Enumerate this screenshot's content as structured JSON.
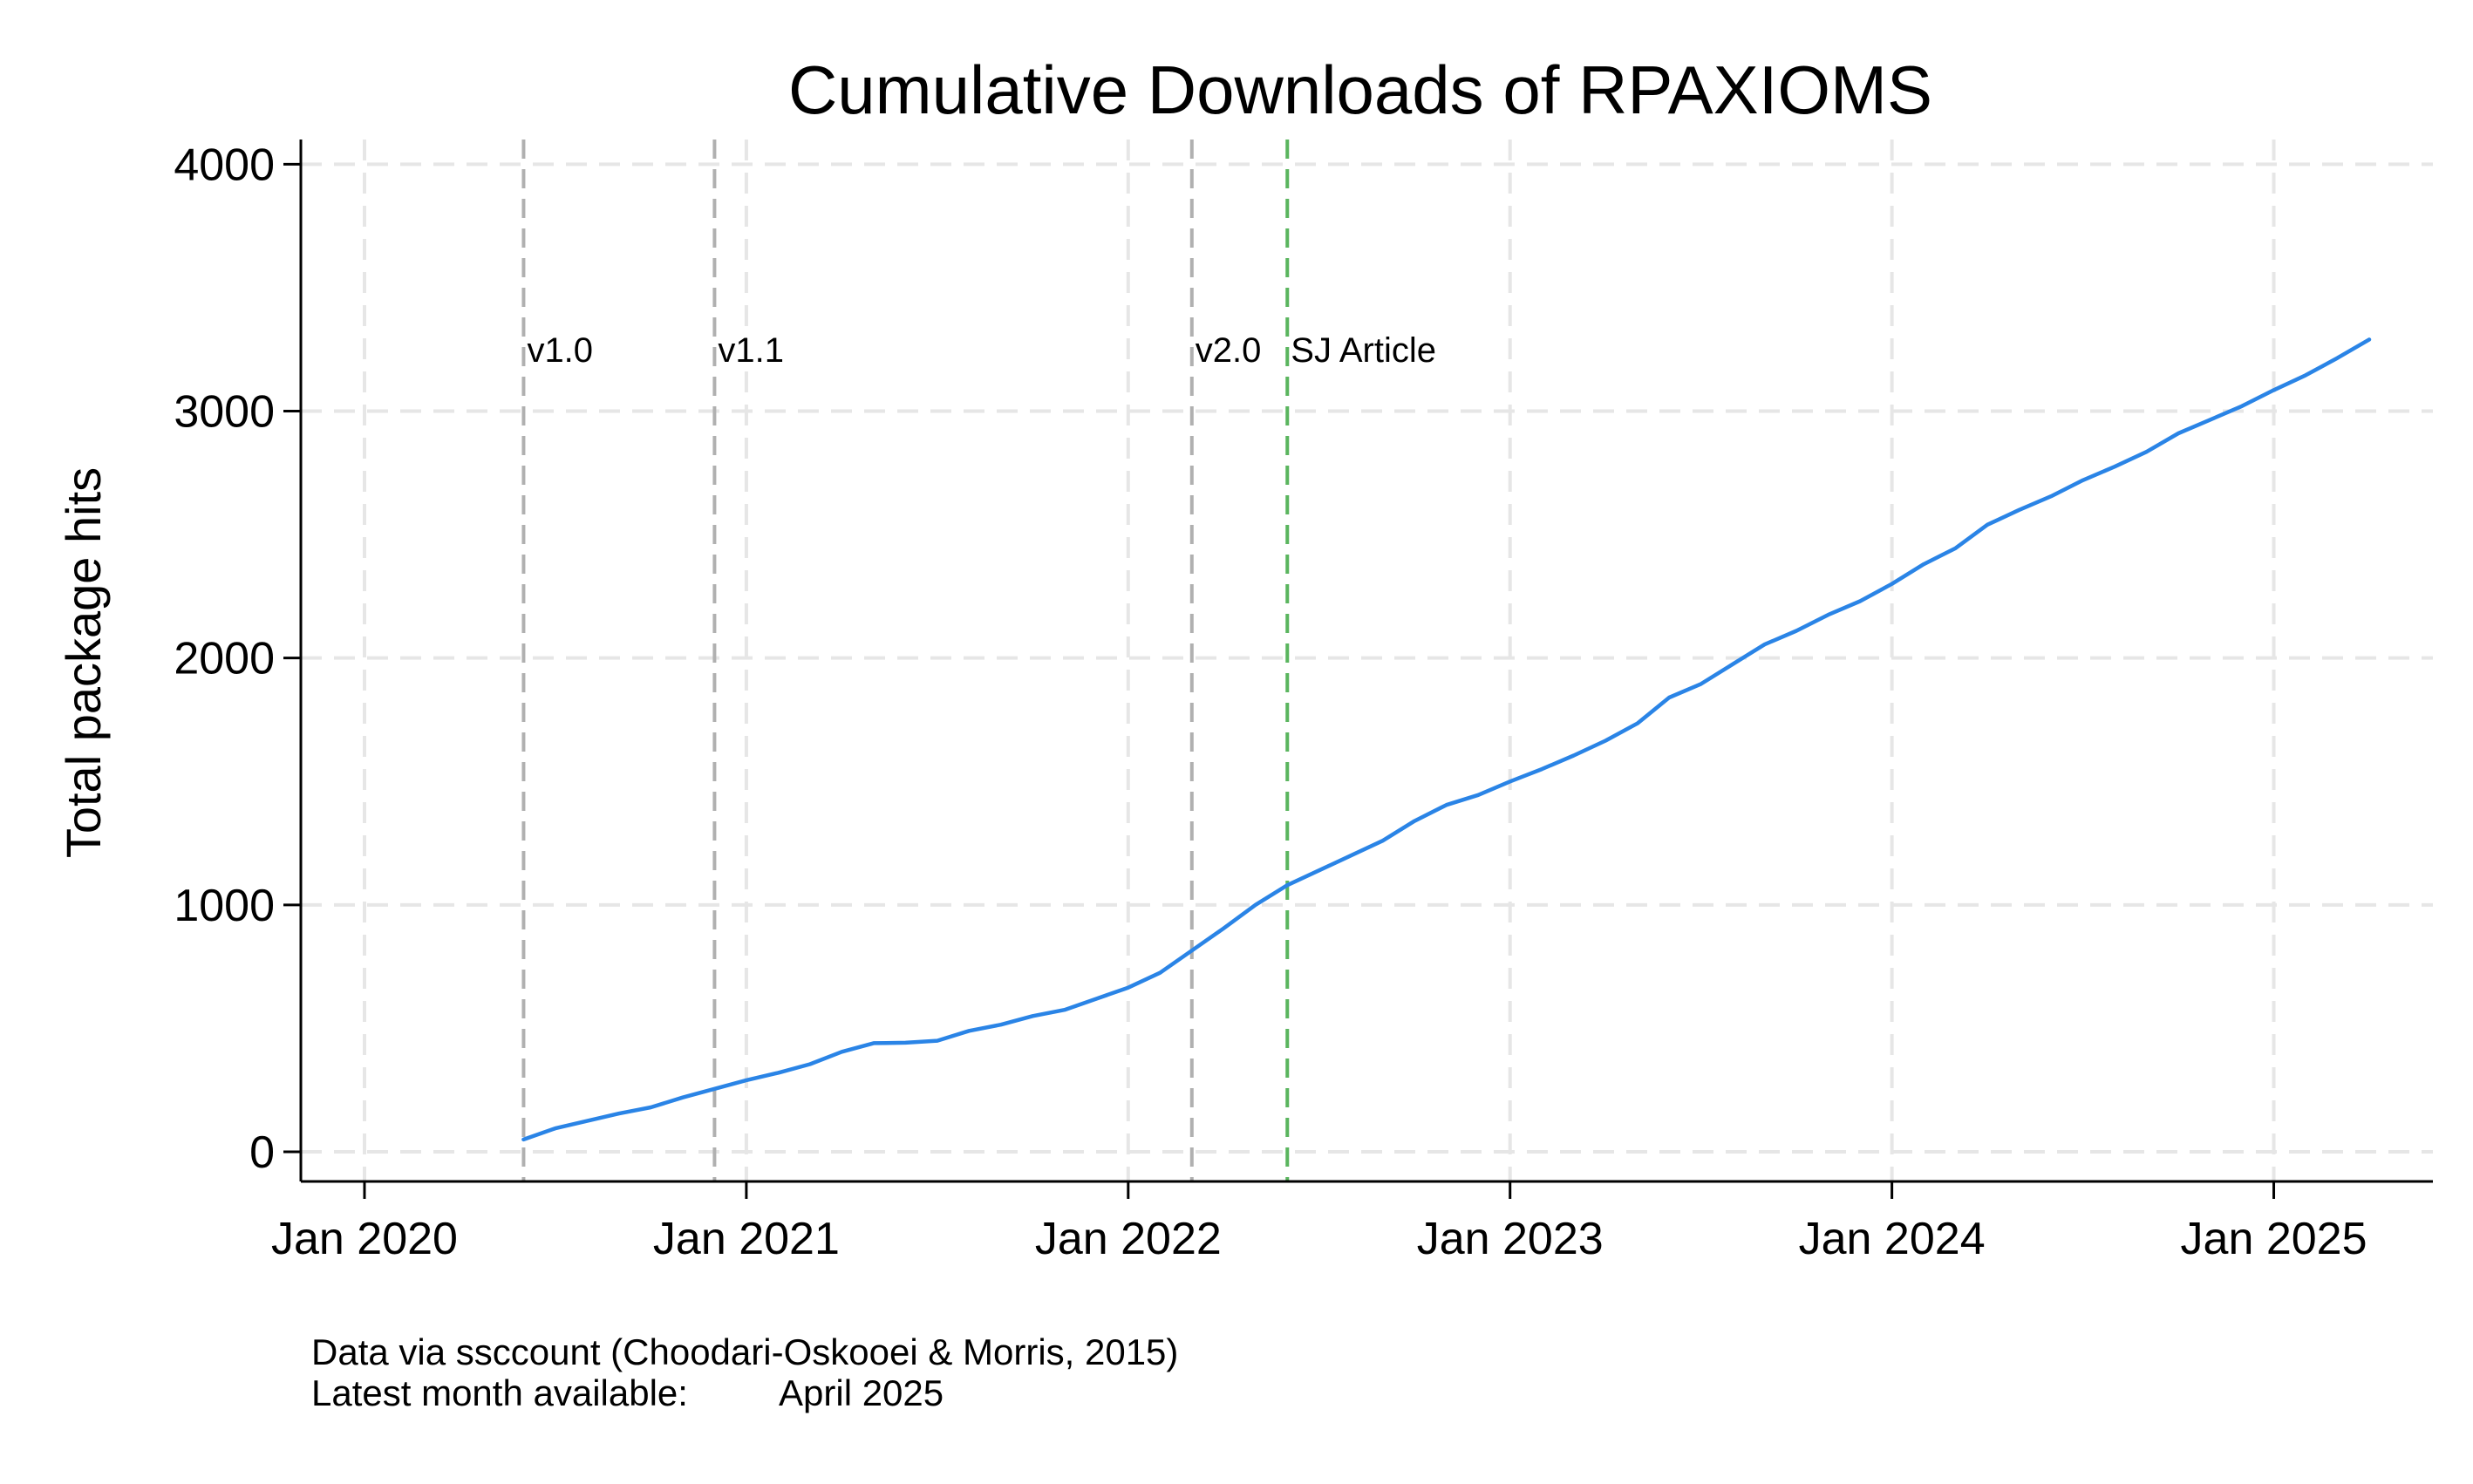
{
  "chart_data": {
    "type": "line",
    "title": "Cumulative Downloads of RPAXIOMS",
    "xlabel": "",
    "ylabel": "Total package hits",
    "xlim": [
      "2019-11",
      "2025-06"
    ],
    "ylim": [
      -120,
      4100
    ],
    "yticks": [
      0,
      1000,
      2000,
      3000,
      4000
    ],
    "xticks": [
      {
        "date": "2020-01",
        "label": "Jan 2020"
      },
      {
        "date": "2021-01",
        "label": "Jan 2021"
      },
      {
        "date": "2022-01",
        "label": "Jan 2022"
      },
      {
        "date": "2023-01",
        "label": "Jan 2023"
      },
      {
        "date": "2024-01",
        "label": "Jan 2024"
      },
      {
        "date": "2025-01",
        "label": "Jan 2025"
      }
    ],
    "grid": true,
    "series_color": "#2a84e6",
    "events": [
      {
        "date": "2020-06",
        "label": "v1.0",
        "color": "#b0b0b0"
      },
      {
        "date": "2020-12",
        "label": "v1.1",
        "color": "#b0b0b0"
      },
      {
        "date": "2022-03",
        "label": "v2.0",
        "color": "#b0b0b0"
      },
      {
        "date": "2022-06",
        "label": "SJ Article",
        "color": "#5ab55e"
      }
    ],
    "series": [
      {
        "x": [
          "2020-06",
          "2020-07",
          "2020-08",
          "2020-09",
          "2020-10",
          "2020-11",
          "2020-12",
          "2021-01",
          "2021-02",
          "2021-03",
          "2021-04",
          "2021-05",
          "2021-06",
          "2021-07",
          "2021-08",
          "2021-09",
          "2021-10",
          "2021-11",
          "2021-12",
          "2022-01",
          "2022-02",
          "2022-03",
          "2022-04",
          "2022-05",
          "2022-06",
          "2022-07",
          "2022-08",
          "2022-09",
          "2022-10",
          "2022-11",
          "2022-12",
          "2023-01",
          "2023-02",
          "2023-03",
          "2023-04",
          "2023-05",
          "2023-06",
          "2023-07",
          "2023-08",
          "2023-09",
          "2023-10",
          "2023-11",
          "2023-12",
          "2024-01",
          "2024-02",
          "2024-03",
          "2024-04",
          "2024-05",
          "2024-06",
          "2024-07",
          "2024-08",
          "2024-09",
          "2024-10",
          "2024-11",
          "2024-12",
          "2025-01",
          "2025-02",
          "2025-03",
          "2025-04"
        ],
        "y": [
          50,
          95,
          125,
          155,
          180,
          220,
          255,
          290,
          320,
          355,
          405,
          440,
          442,
          450,
          490,
          515,
          550,
          575,
          620,
          665,
          725,
          815,
          905,
          1000,
          1080,
          1140,
          1200,
          1260,
          1340,
          1405,
          1445,
          1500,
          1550,
          1605,
          1665,
          1735,
          1840,
          1895,
          1975,
          2055,
          2110,
          2175,
          2230,
          2300,
          2380,
          2445,
          2540,
          2600,
          2655,
          2720,
          2775,
          2835,
          2910,
          2965,
          3020,
          3085,
          3145,
          3215,
          3290
        ]
      }
    ]
  },
  "notes": {
    "line1": "Data via ssccount (Choodari-Oskooei & Morris, 2015)",
    "line2_label": "Latest month available:",
    "line2_value": "April 2025"
  }
}
